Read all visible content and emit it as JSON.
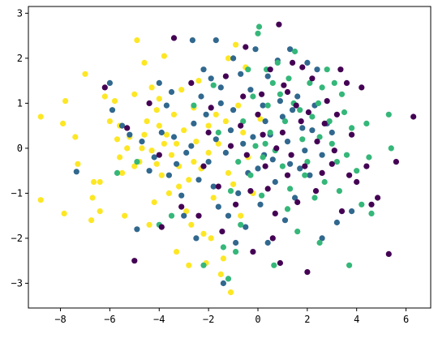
{
  "chart_data": {
    "type": "scatter",
    "title": "",
    "xlabel": "",
    "ylabel": "",
    "xlim": [
      -9.3,
      7.0
    ],
    "ylim": [
      -3.55,
      3.15
    ],
    "xticks": [
      -8,
      -6,
      -4,
      -2,
      0,
      2,
      4,
      6
    ],
    "yticks": [
      -3,
      -2,
      -1,
      0,
      1,
      2,
      3
    ],
    "xtick_labels": [
      "−8",
      "−6",
      "−4",
      "−2",
      "0",
      "2",
      "4",
      "6"
    ],
    "ytick_labels": [
      "−3",
      "−2",
      "−1",
      "0",
      "1",
      "2",
      "3"
    ],
    "grid": false,
    "legend": false,
    "series": [
      {
        "color": "#fde725",
        "points": [
          [
            -8.8,
            0.7
          ],
          [
            -8.8,
            -1.15
          ],
          [
            -7.9,
            0.55
          ],
          [
            -7.8,
            1.05
          ],
          [
            -7.85,
            -1.45
          ],
          [
            -7.4,
            0.25
          ],
          [
            -7.3,
            -0.35
          ],
          [
            -7.0,
            1.65
          ],
          [
            -6.7,
            -1.1
          ],
          [
            -6.75,
            -1.6
          ],
          [
            -6.65,
            -0.75
          ],
          [
            -6.4,
            -0.75
          ],
          [
            -6.4,
            -1.4
          ],
          [
            -6.2,
            1.15
          ],
          [
            -5.8,
            1.05
          ],
          [
            -5.6,
            0.5
          ],
          [
            -5.4,
            -1.5
          ],
          [
            -5.5,
            -0.55
          ],
          [
            -5.3,
            0.0
          ],
          [
            -5.0,
            1.2
          ],
          [
            -4.9,
            2.4
          ],
          [
            -4.6,
            1.9
          ],
          [
            -4.6,
            0.3
          ],
          [
            -4.3,
            1.35
          ],
          [
            -4.0,
            0.5
          ],
          [
            -3.8,
            2.05
          ],
          [
            -3.3,
            0.1
          ],
          [
            -3.2,
            -0.4
          ],
          [
            -2.9,
            -1.4
          ],
          [
            -2.6,
            -0.3
          ],
          [
            -2.1,
            -2.55
          ],
          [
            -1.5,
            -2.8
          ],
          [
            -1.2,
            2.0
          ],
          [
            -1.1,
            -3.2
          ],
          [
            -1.3,
            0.6
          ],
          [
            -5.2,
            0.25
          ],
          [
            -4.8,
            -0.3
          ],
          [
            -4.5,
            0.6
          ],
          [
            -4.3,
            -0.05
          ],
          [
            -4.1,
            0.85
          ],
          [
            -3.9,
            -0.6
          ],
          [
            -3.7,
            0.3
          ],
          [
            -3.5,
            -0.15
          ],
          [
            -3.4,
            0.75
          ],
          [
            -3.0,
            0.4
          ],
          [
            -2.8,
            -0.7
          ],
          [
            -2.5,
            0.15
          ],
          [
            -2.3,
            -0.45
          ],
          [
            -2.0,
            0.5
          ],
          [
            -1.8,
            -1.1
          ],
          [
            -1.6,
            0.1
          ],
          [
            -4.2,
            -1.2
          ],
          [
            -3.6,
            -1.0
          ],
          [
            -2.7,
            -1.7
          ],
          [
            -2.2,
            -1.9
          ],
          [
            -1.9,
            -2.0
          ],
          [
            -5.7,
            0.2
          ],
          [
            -5.0,
            -0.4
          ],
          [
            -4.0,
            1.1
          ],
          [
            -3.1,
            1.3
          ],
          [
            -2.4,
            1.5
          ],
          [
            -1.0,
            -0.8
          ],
          [
            -0.7,
            -1.5
          ],
          [
            -0.4,
            -0.2
          ],
          [
            -0.8,
            0.95
          ],
          [
            -6.0,
            0.6
          ],
          [
            -5.6,
            -0.2
          ],
          [
            -4.4,
            -1.7
          ],
          [
            -3.3,
            -2.3
          ],
          [
            -2.8,
            -2.6
          ],
          [
            -1.4,
            -2.45
          ],
          [
            -0.9,
            2.3
          ],
          [
            -0.5,
            1.8
          ],
          [
            -4.7,
            0.0
          ],
          [
            -4.1,
            -0.35
          ],
          [
            -3.8,
            0.1
          ],
          [
            -3.2,
            -0.85
          ],
          [
            -2.6,
            0.9
          ],
          [
            -2.0,
            -0.1
          ],
          [
            -1.7,
            0.75
          ],
          [
            -1.2,
            -0.55
          ],
          [
            -0.6,
            0.35
          ],
          [
            -0.2,
            -1.0
          ],
          [
            0.1,
            0.65
          ]
        ]
      },
      {
        "color": "#31688e",
        "points": [
          [
            -7.35,
            -0.52
          ],
          [
            -6.0,
            1.45
          ],
          [
            -5.9,
            0.85
          ],
          [
            -5.5,
            0.5
          ],
          [
            -5.2,
            0.3
          ],
          [
            -4.4,
            -0.5
          ],
          [
            -4.0,
            1.45
          ],
          [
            -3.6,
            -0.6
          ],
          [
            -3.4,
            0.25
          ],
          [
            -2.9,
            -0.1
          ],
          [
            -2.6,
            0.55
          ],
          [
            -2.3,
            1.15
          ],
          [
            -2.0,
            -0.3
          ],
          [
            -1.7,
            0.2
          ],
          [
            -1.7,
            2.4
          ],
          [
            -1.2,
            -1.5
          ],
          [
            -1.0,
            0.85
          ],
          [
            -0.7,
            1.65
          ],
          [
            -0.4,
            -0.55
          ],
          [
            -0.2,
            0.25
          ],
          [
            0.1,
            -1.25
          ],
          [
            0.3,
            0.6
          ],
          [
            0.6,
            -0.25
          ],
          [
            0.9,
            1.05
          ],
          [
            1.2,
            0.15
          ],
          [
            1.5,
            -1.1
          ],
          [
            1.8,
            0.45
          ],
          [
            2.1,
            -0.6
          ],
          [
            2.4,
            1.75
          ],
          [
            2.6,
            -0.15
          ],
          [
            2.8,
            0.55
          ],
          [
            3.2,
            -1.65
          ],
          [
            3.8,
            -1.4
          ],
          [
            -4.9,
            -1.8
          ],
          [
            -3.0,
            -1.5
          ],
          [
            -2.5,
            -2.0
          ],
          [
            -1.4,
            -3.0
          ],
          [
            -0.9,
            -2.1
          ],
          [
            0.4,
            -2.1
          ],
          [
            1.3,
            2.2
          ],
          [
            2.0,
            1.9
          ],
          [
            2.6,
            -2.0
          ],
          [
            -3.7,
            0.95
          ],
          [
            -3.3,
            -0.35
          ],
          [
            -2.7,
            0.05
          ],
          [
            -2.4,
            -0.7
          ],
          [
            -2.1,
            0.75
          ],
          [
            -1.8,
            -0.85
          ],
          [
            -1.5,
            1.35
          ],
          [
            -1.3,
            -0.1
          ],
          [
            -1.1,
            0.4
          ],
          [
            -0.8,
            -1.0
          ],
          [
            -0.6,
            0.1
          ],
          [
            -0.3,
            1.3
          ],
          [
            0.0,
            -0.45
          ],
          [
            0.2,
            0.95
          ],
          [
            0.5,
            0.3
          ],
          [
            0.7,
            -0.75
          ],
          [
            1.0,
            0.7
          ],
          [
            1.3,
            -0.35
          ],
          [
            1.6,
            1.15
          ],
          [
            1.9,
            -0.05
          ],
          [
            2.2,
            0.4
          ],
          [
            -4.7,
            0.15
          ],
          [
            -4.2,
            -0.2
          ],
          [
            -3.9,
            0.35
          ],
          [
            -3.5,
            1.25
          ],
          [
            -3.1,
            -1.05
          ],
          [
            -2.2,
            1.75
          ],
          [
            -1.9,
            1.55
          ],
          [
            -1.6,
            -1.3
          ],
          [
            -1.0,
            2.0
          ],
          [
            -0.5,
            -1.75
          ],
          [
            0.4,
            1.6
          ],
          [
            0.8,
            1.95
          ],
          [
            1.1,
            -1.6
          ],
          [
            1.4,
            0.85
          ],
          [
            -2.65,
            2.4
          ],
          [
            -1.5,
            1.0
          ],
          [
            -0.1,
            2.2
          ],
          [
            0.25,
            -0.15
          ],
          [
            1.7,
            -0.45
          ],
          [
            2.3,
            0.95
          ],
          [
            3.0,
            0.35
          ]
        ]
      },
      {
        "color": "#35b779",
        "points": [
          [
            -5.7,
            -0.55
          ],
          [
            -4.9,
            -0.3
          ],
          [
            -4.0,
            -1.7
          ],
          [
            -3.5,
            -1.5
          ],
          [
            -2.6,
            0.95
          ],
          [
            -2.2,
            -2.6
          ],
          [
            -1.8,
            1.4
          ],
          [
            -1.4,
            -2.2
          ],
          [
            -1.2,
            -2.9
          ],
          [
            -0.9,
            -2.3
          ],
          [
            -0.6,
            0.6
          ],
          [
            -0.2,
            1.15
          ],
          [
            0.0,
            2.55
          ],
          [
            0.05,
            2.7
          ],
          [
            0.2,
            -0.2
          ],
          [
            0.35,
            1.75
          ],
          [
            0.5,
            0.35
          ],
          [
            0.65,
            -2.6
          ],
          [
            0.8,
            1.9
          ],
          [
            1.0,
            -0.4
          ],
          [
            1.2,
            -1.35
          ],
          [
            1.5,
            2.15
          ],
          [
            1.7,
            0.85
          ],
          [
            1.9,
            -0.6
          ],
          [
            2.1,
            1.45
          ],
          [
            2.3,
            -1.1
          ],
          [
            2.5,
            0.25
          ],
          [
            2.6,
            1.35
          ],
          [
            2.7,
            -0.75
          ],
          [
            2.8,
            1.75
          ],
          [
            3.0,
            0.1
          ],
          [
            3.2,
            -0.3
          ],
          [
            3.4,
            1.2
          ],
          [
            3.6,
            -0.15
          ],
          [
            3.8,
            0.45
          ],
          [
            4.0,
            -0.5
          ],
          [
            4.2,
            -1.25
          ],
          [
            4.4,
            0.55
          ],
          [
            4.5,
            -0.2
          ],
          [
            4.6,
            -1.45
          ],
          [
            5.3,
            0.75
          ],
          [
            5.4,
            0.0
          ],
          [
            3.7,
            -2.6
          ],
          [
            2.5,
            -2.1
          ],
          [
            1.6,
            -1.85
          ],
          [
            -0.7,
            -1.7
          ],
          [
            -1.1,
            -0.95
          ],
          [
            -0.3,
            -0.6
          ],
          [
            0.4,
            0.95
          ],
          [
            0.7,
            -0.05
          ],
          [
            0.9,
            1.2
          ],
          [
            1.1,
            0.6
          ],
          [
            1.3,
            -0.9
          ],
          [
            1.45,
            1.0
          ],
          [
            1.8,
            0.2
          ],
          [
            2.0,
            -0.3
          ],
          [
            2.2,
            0.7
          ],
          [
            2.45,
            1.0
          ],
          [
            2.9,
            0.6
          ],
          [
            3.1,
            1.45
          ],
          [
            3.3,
            -0.95
          ],
          [
            3.5,
            0.8
          ],
          [
            -0.4,
            1.75
          ],
          [
            -0.1,
            0.05
          ],
          [
            0.15,
            -1.05
          ],
          [
            0.6,
            1.45
          ],
          [
            1.25,
            1.55
          ],
          [
            -1.6,
            0.35
          ],
          [
            -0.8,
            -0.3
          ],
          [
            0.3,
            0.1
          ]
        ]
      },
      {
        "color": "#440154",
        "points": [
          [
            -6.2,
            1.35
          ],
          [
            -5.3,
            0.45
          ],
          [
            -5.0,
            -2.5
          ],
          [
            -4.4,
            1.0
          ],
          [
            -4.0,
            -0.15
          ],
          [
            -3.9,
            -1.75
          ],
          [
            -3.4,
            2.45
          ],
          [
            -3.1,
            -1.3
          ],
          [
            -2.7,
            1.45
          ],
          [
            -2.4,
            -1.5
          ],
          [
            -2.0,
            0.35
          ],
          [
            -1.6,
            -0.85
          ],
          [
            -1.3,
            1.6
          ],
          [
            -0.9,
            -1.25
          ],
          [
            -0.5,
            2.25
          ],
          [
            -0.3,
            -0.95
          ],
          [
            0.0,
            0.75
          ],
          [
            0.3,
            -0.4
          ],
          [
            0.5,
            1.75
          ],
          [
            0.7,
            -1.45
          ],
          [
            0.85,
            2.75
          ],
          [
            1.0,
            0.35
          ],
          [
            1.2,
            -0.6
          ],
          [
            1.4,
            1.9
          ],
          [
            1.6,
            -1.2
          ],
          [
            1.75,
            0.6
          ],
          [
            1.9,
            -0.4
          ],
          [
            2.0,
            -2.75
          ],
          [
            2.2,
            1.55
          ],
          [
            2.4,
            0.15
          ],
          [
            2.6,
            -0.55
          ],
          [
            2.8,
            1.05
          ],
          [
            3.0,
            -0.35
          ],
          [
            3.2,
            0.75
          ],
          [
            3.4,
            -1.4
          ],
          [
            3.6,
            1.45
          ],
          [
            3.8,
            0.3
          ],
          [
            4.0,
            -0.75
          ],
          [
            4.2,
            1.35
          ],
          [
            4.4,
            -0.4
          ],
          [
            4.6,
            -1.25
          ],
          [
            4.85,
            -1.1
          ],
          [
            5.3,
            -2.35
          ],
          [
            5.6,
            -0.3
          ],
          [
            6.3,
            0.7
          ],
          [
            0.9,
            -2.55
          ],
          [
            0.6,
            -2.0
          ],
          [
            -0.2,
            -2.3
          ],
          [
            1.2,
            1.25
          ],
          [
            -2.2,
            -0.4
          ],
          [
            -1.9,
            0.9
          ],
          [
            -1.1,
            0.05
          ],
          [
            -0.7,
            0.5
          ],
          [
            -0.45,
            -0.15
          ],
          [
            0.15,
            1.2
          ],
          [
            0.4,
            -0.9
          ],
          [
            0.75,
            0.0
          ],
          [
            1.05,
            1.4
          ],
          [
            1.35,
            -0.15
          ],
          [
            1.55,
            0.95
          ],
          [
            2.05,
            0.8
          ],
          [
            2.35,
            -0.95
          ],
          [
            2.7,
            0.55
          ],
          [
            3.1,
            -0.05
          ],
          [
            3.35,
            1.75
          ],
          [
            3.7,
            -0.6
          ],
          [
            -1.45,
            -1.85
          ],
          [
            -0.6,
            1.15
          ],
          [
            0.2,
            0.3
          ],
          [
            1.8,
            1.8
          ]
        ]
      }
    ]
  }
}
